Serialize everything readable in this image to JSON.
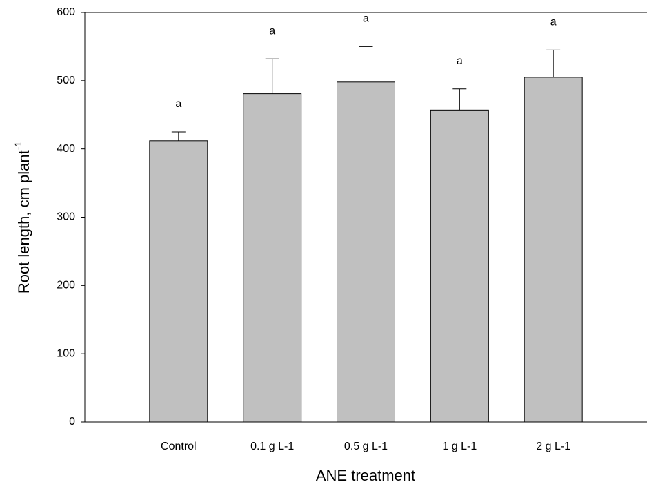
{
  "chart_data": {
    "type": "bar",
    "x_label": "ANE treatment",
    "y_label": "Root length, cm plant",
    "y_label_sup": "-1",
    "categories": [
      "Control",
      "0.1 g L-1",
      "0.5 g L-1",
      "1 g L-1",
      "2 g L-1"
    ],
    "values": [
      412,
      481,
      498,
      457,
      505
    ],
    "errors": [
      13,
      51,
      52,
      31,
      40
    ],
    "annotations": [
      "a",
      "a",
      "a",
      "a",
      "a"
    ],
    "color": "#c0c0c0",
    "ylim": [
      0,
      600
    ],
    "yticks": [
      0,
      100,
      200,
      300,
      400,
      500,
      600
    ],
    "grid": false
  }
}
